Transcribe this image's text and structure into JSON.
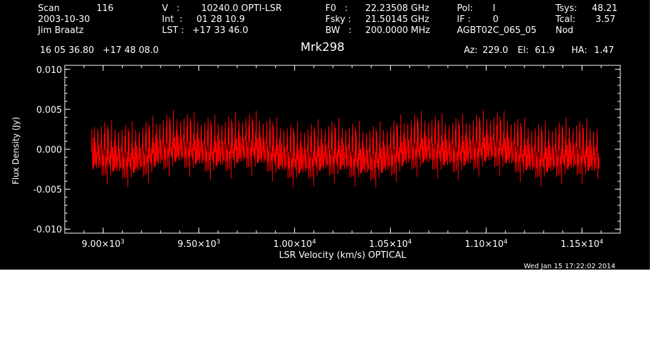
{
  "header": {
    "scan_label": "Scan",
    "scan_value": "116",
    "date": "2003-10-30",
    "observer": "Jim Braatz",
    "v_label": "V   :",
    "v_value": "10240.0 OPTI-LSR",
    "int_label": "Int  :",
    "int_value": "01 28 10.9",
    "lst_label": "LST :",
    "lst_value": "+17 33 46.0",
    "f0_label": "F0   :",
    "f0_value": "22.23508 GHz",
    "fsky_label": "Fsky :",
    "fsky_value": "21.50145 GHz",
    "bw_label": "BW   :",
    "bw_value": "200.0000 MHz",
    "pol_label": "Pol:",
    "pol_value": "I",
    "if_label": "IF :",
    "if_value": "0",
    "project": "AGBT02C_065_05",
    "tsys_label": "Tsys:",
    "tsys_value": "48.21",
    "tcal_label": "Tcal:",
    "tcal_value": "3.57",
    "procedure": "Nod",
    "coords": "16 05 36.80   +17 48 08.0",
    "source": "Mrk298",
    "az_label": "Az:",
    "az_value": "229.0",
    "el_label": "El:",
    "el_value": "61.9",
    "ha_label": "HA:",
    "ha_value": "1.47",
    "timestamp": "Wed Jan 15 17:22:02 2014"
  },
  "chart_data": {
    "type": "line",
    "title": "Mrk298",
    "xlabel": "LSR Velocity (km/s) OPTICAL",
    "ylabel": "Flux Density (Jy)",
    "xlim": [
      8800,
      11700
    ],
    "ylim": [
      -0.0105,
      0.0105
    ],
    "x_range": [
      8940,
      11590
    ],
    "x_ticks": [
      9000,
      9500,
      10000,
      10500,
      11000,
      11500
    ],
    "x_tick_mantissas": [
      "9.00",
      "9.50",
      "1.00",
      "1.05",
      "1.10",
      "1.15"
    ],
    "x_tick_exponents": [
      "3",
      "3",
      "4",
      "4",
      "4",
      "4"
    ],
    "y_ticks": [
      -0.01,
      -0.005,
      0.0,
      0.005,
      0.01
    ],
    "y_tick_labels": [
      "-0.010",
      "-0.005",
      "0.000",
      "0.005",
      "0.010"
    ],
    "series": [
      {
        "color": "#ff0000",
        "description": "noise spectrum centered near 0.000 Jy, rms about 0.002 Jy, extremes about +0.007 / -0.006 Jy",
        "x_start": 8940,
        "x_end": 11590,
        "n_points": 1500,
        "baseline": 0.0003,
        "rms": 0.0021
      }
    ],
    "grid": false,
    "background": "#000000",
    "axis_color": "#ffffff"
  }
}
